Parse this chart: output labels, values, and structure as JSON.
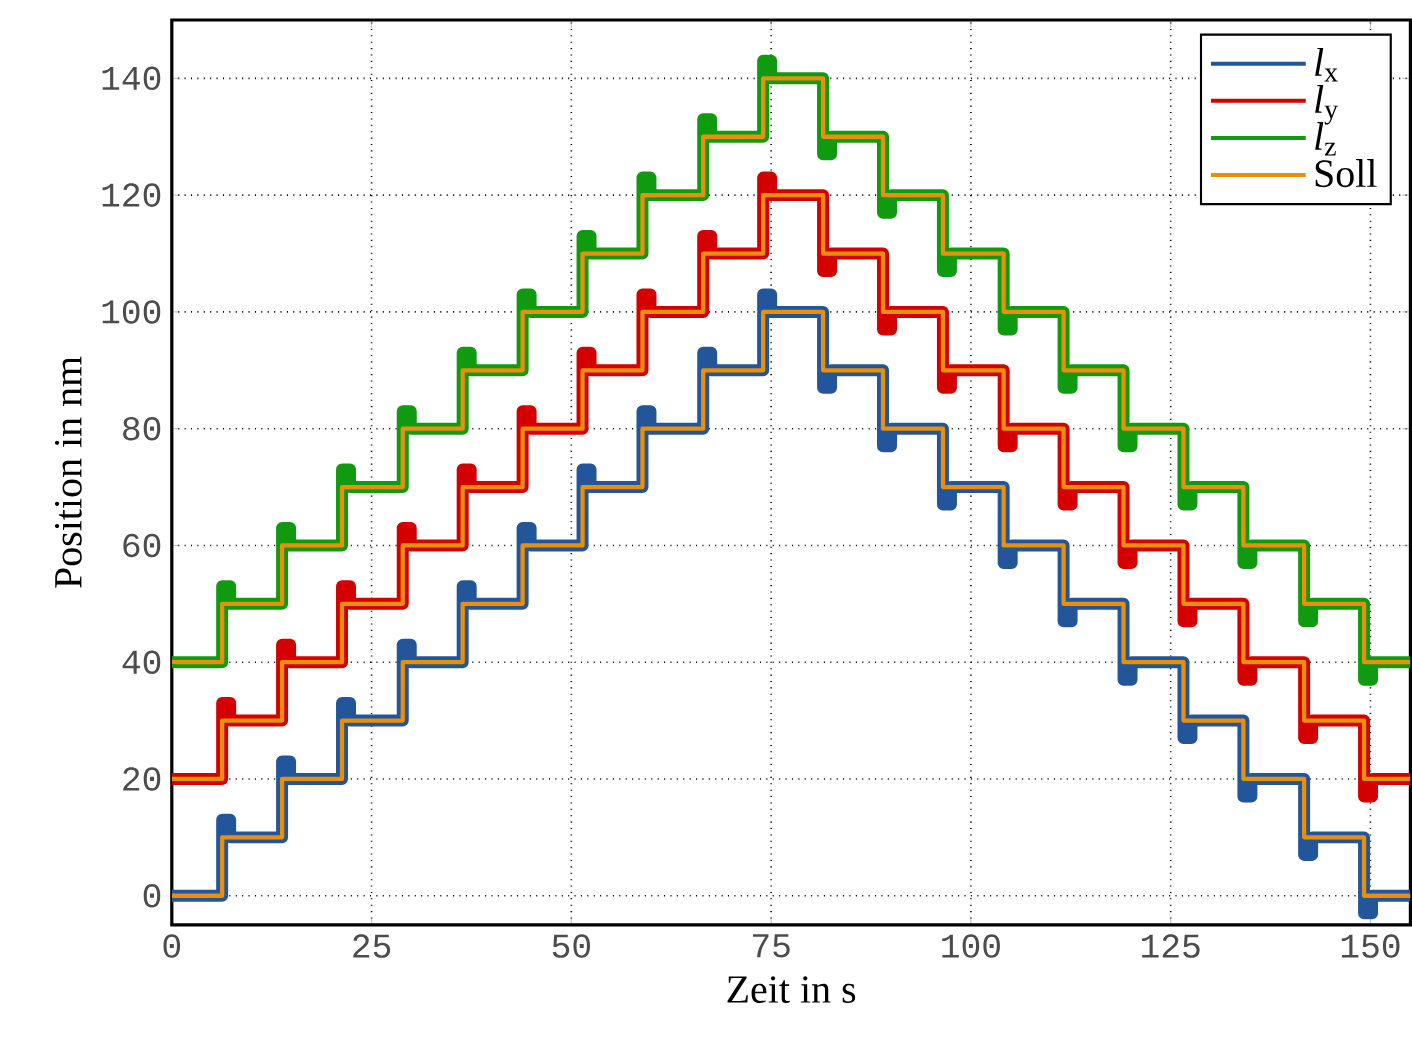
{
  "chart_data": {
    "type": "step",
    "xlabel": "Zeit in s",
    "ylabel": "Position in nm",
    "x": [
      0,
      6.3,
      7.3,
      13.8,
      14.8,
      21.3,
      22.3,
      28.9,
      29.9,
      36.4,
      37.4,
      43.9,
      44.9,
      51.4,
      52.4,
      58.9,
      59.9,
      66.5,
      67.5,
      74,
      75,
      81.5,
      82.5,
      89,
      90,
      96.5,
      97.5,
      104.1,
      105.1,
      111.6,
      112.6,
      119.1,
      120.1,
      126.6,
      127.6,
      134.1,
      135.1,
      141.7,
      142.7,
      149.2,
      150.2,
      155
    ],
    "series": [
      {
        "name": "*l*$_{x}$",
        "color": "#23559b",
        "values": [
          0,
          13,
          10,
          23,
          20,
          33,
          30,
          43,
          40,
          53,
          50,
          63,
          60,
          73,
          70,
          83,
          80,
          93,
          90,
          103,
          100,
          87,
          90,
          77,
          80,
          67,
          70,
          57,
          60,
          47,
          50,
          37,
          40,
          27,
          30,
          17,
          20,
          7,
          10,
          -3,
          0,
          0
        ]
      },
      {
        "name": "*l*$_{y}$",
        "color": "#d40000",
        "values": [
          20,
          33,
          30,
          43,
          40,
          53,
          50,
          63,
          60,
          73,
          70,
          83,
          80,
          93,
          90,
          103,
          100,
          113,
          110,
          123,
          120,
          107,
          110,
          97,
          100,
          87,
          90,
          77,
          80,
          67,
          70,
          57,
          60,
          47,
          50,
          37,
          40,
          27,
          30,
          17,
          20,
          20
        ]
      },
      {
        "name": "*l*$_{z}$",
        "color": "#109a10",
        "values": [
          40,
          53,
          50,
          63,
          60,
          73,
          70,
          83,
          80,
          93,
          90,
          103,
          100,
          113,
          110,
          123,
          120,
          133,
          130,
          143,
          140,
          127,
          130,
          117,
          120,
          107,
          110,
          97,
          100,
          87,
          90,
          77,
          80,
          67,
          70,
          57,
          60,
          47,
          50,
          37,
          40,
          40
        ]
      },
      {
        "name": "Soll",
        "color": "#e8900a",
        "x": [
          0,
          6.3,
          13.8,
          21.3,
          28.9,
          36.4,
          43.9,
          51.4,
          58.9,
          66.5,
          74,
          81.5,
          89,
          96.5,
          104.1,
          111.6,
          119.1,
          126.6,
          134.1,
          141.7,
          149.2,
          155
        ],
        "values": [
          0,
          10,
          20,
          30,
          40,
          50,
          60,
          70,
          80,
          90,
          100,
          90,
          80,
          70,
          60,
          50,
          40,
          30,
          20,
          10,
          0,
          0
        ]
      },
      {
        "color": "#e8900a",
        "x": [
          0,
          6.3,
          13.8,
          21.3,
          28.9,
          36.4,
          43.9,
          51.4,
          58.9,
          66.5,
          74,
          81.5,
          89,
          96.5,
          104.1,
          111.6,
          119.1,
          126.6,
          134.1,
          141.7,
          149.2,
          155
        ],
        "values": [
          20,
          30,
          40,
          50,
          60,
          70,
          80,
          90,
          100,
          110,
          120,
          110,
          100,
          90,
          80,
          70,
          60,
          50,
          40,
          30,
          20,
          20
        ]
      },
      {
        "color": "#e8900a",
        "x": [
          0,
          6.3,
          13.8,
          21.3,
          28.9,
          36.4,
          43.9,
          51.4,
          58.9,
          66.5,
          74,
          81.5,
          89,
          96.5,
          104.1,
          111.6,
          119.1,
          126.6,
          134.1,
          141.7,
          149.2,
          155
        ],
        "values": [
          40,
          50,
          60,
          70,
          80,
          90,
          100,
          110,
          120,
          130,
          140,
          130,
          120,
          110,
          100,
          90,
          80,
          70,
          60,
          50,
          40,
          40
        ]
      }
    ],
    "xlim": [
      0,
      155
    ],
    "ylim": [
      -5,
      150
    ],
    "xticks": [
      0,
      25,
      50,
      75,
      100,
      125,
      150
    ],
    "yticks": [
      0,
      20,
      40,
      60,
      80,
      100,
      120,
      140
    ],
    "grid": true,
    "legend": "top right",
    "marker": "none",
    "line_style": "solid"
  }
}
